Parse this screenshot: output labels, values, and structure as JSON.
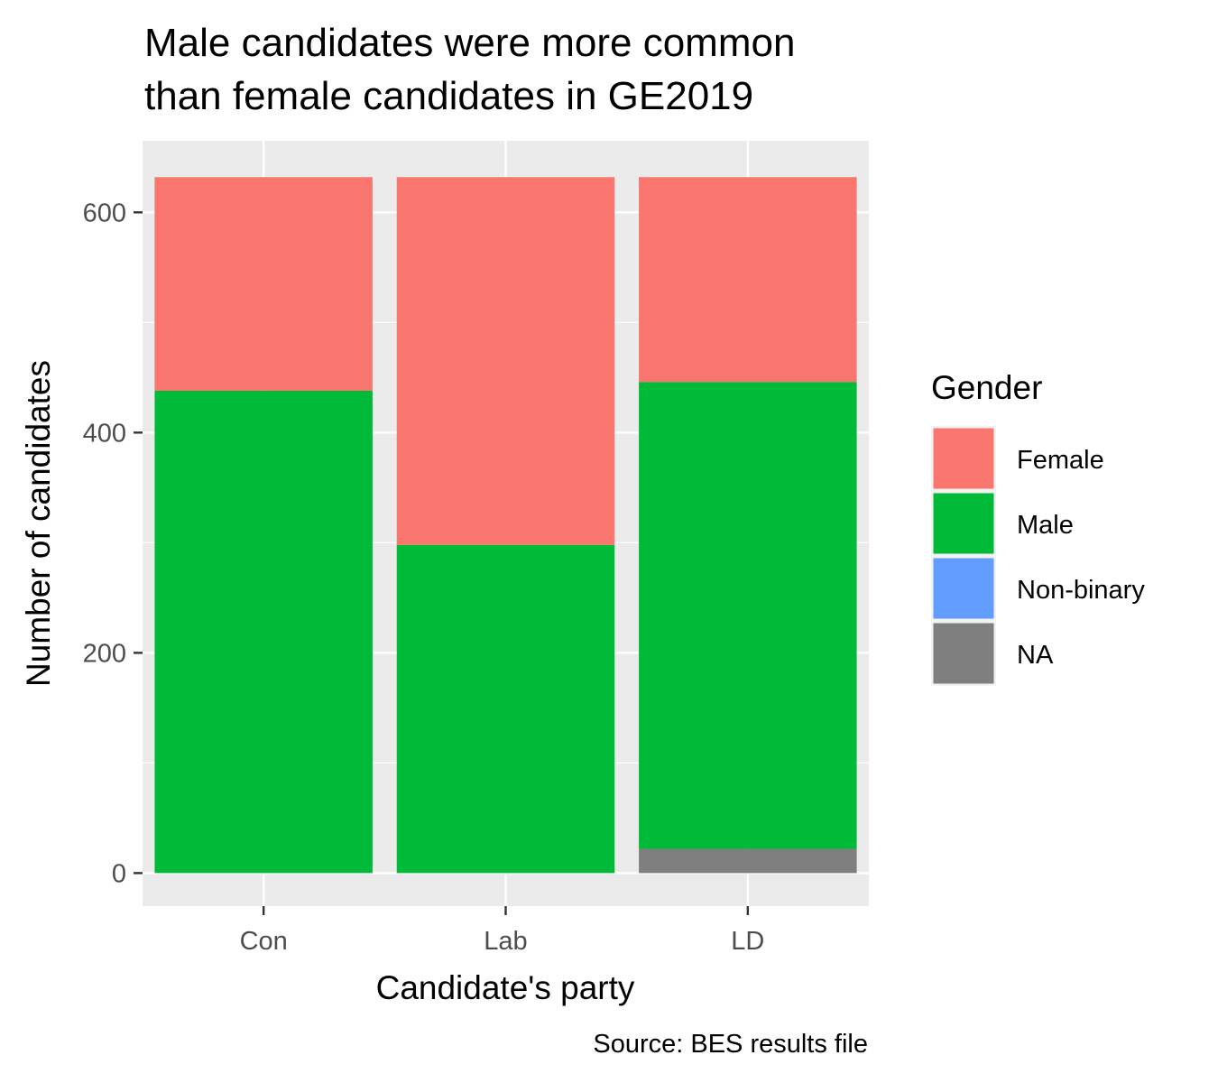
{
  "chart_data": {
    "type": "bar",
    "stacked": true,
    "title_lines": [
      "Male candidates were more common",
      "than female candidates in GE2019"
    ],
    "xlabel": "Candidate's party",
    "ylabel": "Number of candidates",
    "caption": "Source: BES results file",
    "categories": [
      "Con",
      "Lab",
      "LD"
    ],
    "series": [
      {
        "name": "Female",
        "color": "#F8766D",
        "values": [
          194,
          334,
          186
        ]
      },
      {
        "name": "Male",
        "color": "#00BA38",
        "values": [
          438,
          298,
          424
        ]
      },
      {
        "name": "Non-binary",
        "color": "#619CFF",
        "values": [
          0,
          0,
          0
        ]
      },
      {
        "name": "NA",
        "color": "#7F7F7F",
        "values": [
          0,
          0,
          22
        ]
      }
    ],
    "ylim": [
      -30,
      665
    ],
    "yticks": [
      0,
      200,
      400,
      600
    ],
    "grid": true,
    "legend": {
      "title": "Gender",
      "position": "right"
    },
    "panel_background": "#EBEBEB"
  }
}
